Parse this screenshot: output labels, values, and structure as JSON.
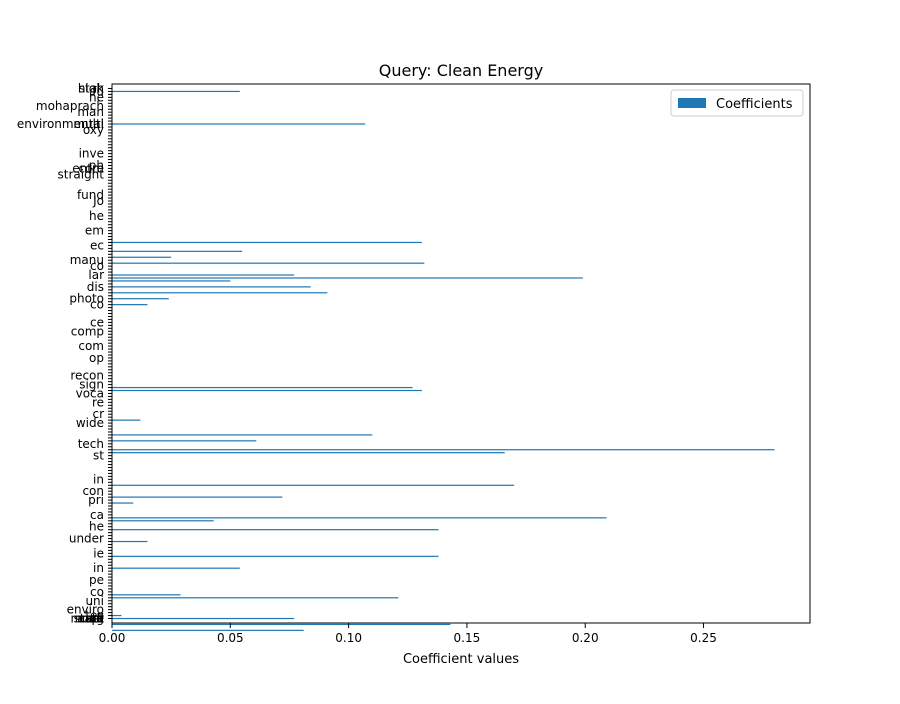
{
  "chart_data": {
    "type": "bar",
    "orientation": "horizontal",
    "title": "Query: Clean Energy",
    "xlabel": "Coefficient values",
    "ylabel": "",
    "xlim": [
      0,
      0.295
    ],
    "x_ticks": [
      0.0,
      0.05,
      0.1,
      0.15,
      0.2,
      0.25
    ],
    "x_tick_labels": [
      "0.00",
      "0.05",
      "0.10",
      "0.15",
      "0.20",
      "0.25"
    ],
    "legend": {
      "position": "top-right",
      "entries": [
        "Coefficients"
      ]
    },
    "grid": false,
    "colors": {
      "bar": "#1f77b4"
    },
    "bar_count": 180,
    "bars": [
      {
        "i": 1,
        "value": 0.054
      },
      {
        "i": 12,
        "value": 0.107
      },
      {
        "i": 52,
        "value": 0.131
      },
      {
        "i": 55,
        "value": 0.055
      },
      {
        "i": 57,
        "value": 0.025
      },
      {
        "i": 59,
        "value": 0.132
      },
      {
        "i": 63,
        "value": 0.077
      },
      {
        "i": 64,
        "value": 0.199
      },
      {
        "i": 65,
        "value": 0.05
      },
      {
        "i": 67,
        "value": 0.084
      },
      {
        "i": 69,
        "value": 0.091
      },
      {
        "i": 71,
        "value": 0.024
      },
      {
        "i": 73,
        "value": 0.015
      },
      {
        "i": 101,
        "value": 0.127
      },
      {
        "i": 102,
        "value": 0.131
      },
      {
        "i": 112,
        "value": 0.012
      },
      {
        "i": 117,
        "value": 0.11
      },
      {
        "i": 119,
        "value": 0.061
      },
      {
        "i": 122,
        "value": 0.28
      },
      {
        "i": 123,
        "value": 0.166
      },
      {
        "i": 134,
        "value": 0.17
      },
      {
        "i": 138,
        "value": 0.072
      },
      {
        "i": 140,
        "value": 0.009
      },
      {
        "i": 145,
        "value": 0.209
      },
      {
        "i": 146,
        "value": 0.043
      },
      {
        "i": 149,
        "value": 0.138
      },
      {
        "i": 153,
        "value": 0.015
      },
      {
        "i": 158,
        "value": 0.138
      },
      {
        "i": 162,
        "value": 0.054
      },
      {
        "i": 171,
        "value": 0.029
      },
      {
        "i": 172,
        "value": 0.121
      },
      {
        "i": 178,
        "value": 0.004
      },
      {
        "i": 179,
        "value": 0.077
      },
      {
        "i": 181,
        "value": 0.143
      },
      {
        "i": 183,
        "value": 0.081
      }
    ],
    "visible_labels": [
      {
        "i": 0,
        "text": "high"
      },
      {
        "i": 0,
        "text": "stak"
      },
      {
        "i": 1,
        "text": "fu"
      },
      {
        "i": 3,
        "text": "he"
      },
      {
        "i": 6,
        "text": "mohaprach"
      },
      {
        "i": 8,
        "text": "man"
      },
      {
        "i": 12,
        "text": "multi"
      },
      {
        "i": 12,
        "text": "environmental"
      },
      {
        "i": 14,
        "text": "oxy"
      },
      {
        "i": 22,
        "text": "inve"
      },
      {
        "i": 26,
        "text": "ph"
      },
      {
        "i": 27,
        "text": "entre"
      },
      {
        "i": 27,
        "text": "com"
      },
      {
        "i": 29,
        "text": "straight"
      },
      {
        "i": 36,
        "text": "fund"
      },
      {
        "i": 38,
        "text": "Jo"
      },
      {
        "i": 43,
        "text": "he"
      },
      {
        "i": 48,
        "text": "em"
      },
      {
        "i": 53,
        "text": "ec"
      },
      {
        "i": 58,
        "text": "manu"
      },
      {
        "i": 60,
        "text": "co"
      },
      {
        "i": 63,
        "text": "lar"
      },
      {
        "i": 67,
        "text": "dis"
      },
      {
        "i": 71,
        "text": "photo"
      },
      {
        "i": 73,
        "text": "co"
      },
      {
        "i": 79,
        "text": "ce"
      },
      {
        "i": 82,
        "text": "comp"
      },
      {
        "i": 87,
        "text": "com"
      },
      {
        "i": 91,
        "text": "op"
      },
      {
        "i": 97,
        "text": "recon"
      },
      {
        "i": 100,
        "text": "sign"
      },
      {
        "i": 103,
        "text": "voca"
      },
      {
        "i": 106,
        "text": "re"
      },
      {
        "i": 110,
        "text": "cr"
      },
      {
        "i": 113,
        "text": "wide"
      },
      {
        "i": 120,
        "text": "tech"
      },
      {
        "i": 124,
        "text": "st"
      },
      {
        "i": 132,
        "text": "in"
      },
      {
        "i": 136,
        "text": "con"
      },
      {
        "i": 139,
        "text": "pri"
      },
      {
        "i": 144,
        "text": "ca"
      },
      {
        "i": 148,
        "text": "he"
      },
      {
        "i": 152,
        "text": "under"
      },
      {
        "i": 157,
        "text": "ie"
      },
      {
        "i": 162,
        "text": "in"
      },
      {
        "i": 166,
        "text": "pe"
      },
      {
        "i": 170,
        "text": "co"
      },
      {
        "i": 173,
        "text": "uni"
      },
      {
        "i": 176,
        "text": "enviro"
      },
      {
        "i": 178,
        "text": "tec"
      },
      {
        "i": 181,
        "text": "ame"
      },
      {
        "i": 185,
        "text": "est"
      },
      {
        "i": 188,
        "text": "ad"
      },
      {
        "i": 192,
        "text": "ma"
      },
      {
        "i": 196,
        "text": "ch"
      },
      {
        "i": 204,
        "text": "move"
      },
      {
        "i": 208,
        "text": "su"
      },
      {
        "i": 211,
        "text": "mag"
      },
      {
        "i": 213,
        "text": "pr"
      },
      {
        "i": 216,
        "text": "di"
      },
      {
        "i": 217,
        "text": "state"
      }
    ]
  }
}
